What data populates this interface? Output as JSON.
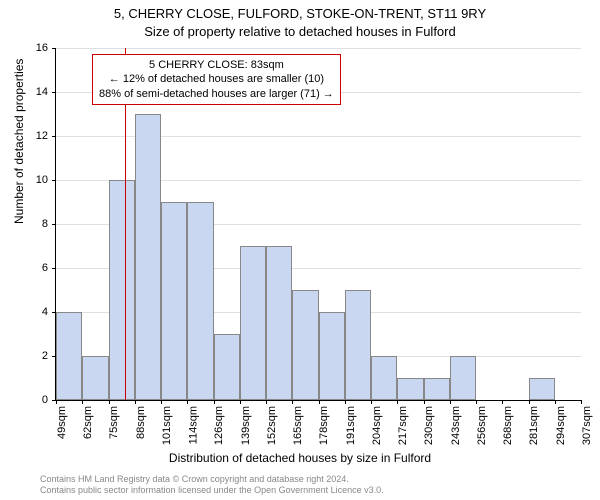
{
  "title": "5, CHERRY CLOSE, FULFORD, STOKE-ON-TRENT, ST11 9RY",
  "subtitle": "Size of property relative to detached houses in Fulford",
  "chart": {
    "type": "histogram",
    "ylabel": "Number of detached properties",
    "xlabel": "Distribution of detached houses by size in Fulford",
    "ylim": [
      0,
      16
    ],
    "ytick_step": 2,
    "yticks": [
      0,
      2,
      4,
      6,
      8,
      10,
      12,
      14,
      16
    ],
    "xticks": [
      "49sqm",
      "62sqm",
      "75sqm",
      "88sqm",
      "101sqm",
      "114sqm",
      "126sqm",
      "139sqm",
      "152sqm",
      "165sqm",
      "178sqm",
      "191sqm",
      "204sqm",
      "217sqm",
      "230sqm",
      "243sqm",
      "256sqm",
      "268sqm",
      "281sqm",
      "294sqm",
      "307sqm"
    ],
    "bar_color": "#c9d7f0",
    "bar_border": "#888888",
    "grid_color": "#e0e0e0",
    "background_color": "#ffffff",
    "values": [
      4,
      2,
      10,
      13,
      9,
      9,
      3,
      7,
      7,
      5,
      4,
      5,
      2,
      1,
      1,
      2,
      0,
      0,
      1,
      0
    ],
    "marker_value": 83,
    "marker_color": "#cc0000",
    "x_min": 49,
    "x_step": 13
  },
  "annotation": {
    "line1": "5 CHERRY CLOSE: 83sqm",
    "line2": "← 12% of detached houses are smaller (10)",
    "line3": "88% of semi-detached houses are larger (71) →",
    "border_color": "#cc0000"
  },
  "footer": {
    "line1": "Contains HM Land Registry data © Crown copyright and database right 2024.",
    "line2": "Contains public sector information licensed under the Open Government Licence v3.0."
  }
}
